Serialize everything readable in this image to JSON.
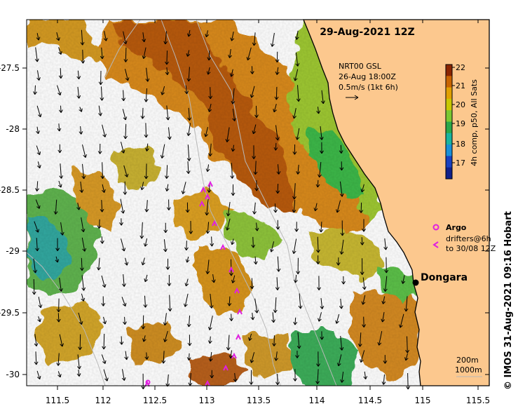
{
  "map": {
    "date_title": "29-Aug-2021 12Z",
    "current_label_line1": "NRT00 GSL",
    "current_label_line2": "26-Aug 18:00Z",
    "current_label_line3": "0.5m/s (1kt 6h)",
    "colorbar_label": "4h comp, p50, All Sats",
    "colorbar_ticks": [
      "22",
      "21",
      "20",
      "19",
      "18",
      "17"
    ],
    "colorbar_colors": [
      "#8b2500",
      "#c86400",
      "#e0a000",
      "#c8c800",
      "#7ac832",
      "#2aa84a",
      "#18b4a0",
      "#1890d8",
      "#1840c0",
      "#10208a"
    ],
    "ocean_missing_color": "#ffffff",
    "land_color": "#fcc88e",
    "legend_argo": "Argo",
    "legend_drifters_line1": "drifters@6h",
    "legend_drifters_line2": "to 30/08 12Z",
    "town_name": "Dongara",
    "depth_label_200": "200m",
    "depth_label_1000": "1000m",
    "copyright": "© IMOS 31-Aug-2021 09:16 Hobart",
    "x_ticks": [
      "111.5",
      "112",
      "112.5",
      "113",
      "113.5",
      "114",
      "114.5",
      "115",
      "115.5"
    ],
    "y_ticks": [
      "-27.5",
      "-28",
      "-28.5",
      "-29",
      "-29.5",
      "-30"
    ]
  }
}
